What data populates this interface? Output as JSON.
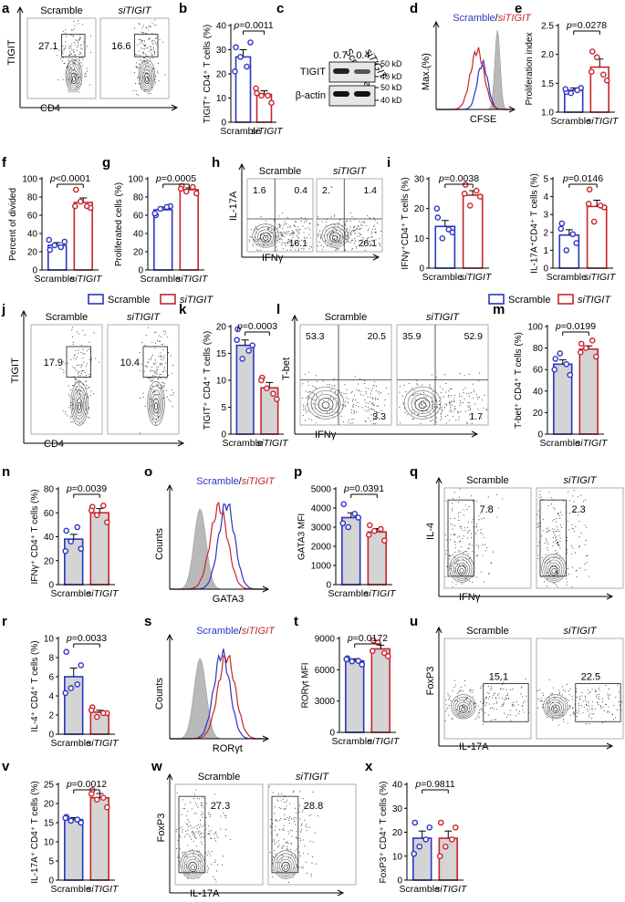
{
  "colors": {
    "scramble": "#2b35c4",
    "sitigit": "#c8242b",
    "bar_fill": "#d4d4d4",
    "gray_hist": "#b9b9b9"
  },
  "labels": {
    "scramble": "Scramble",
    "sitigit": "siTIGIT",
    "slash": "/"
  },
  "panel_letters": [
    "a",
    "b",
    "c",
    "d",
    "e",
    "f",
    "g",
    "h",
    "i",
    "j",
    "k",
    "l",
    "m",
    "n",
    "o",
    "p",
    "q",
    "r",
    "s",
    "t",
    "u",
    "v",
    "w",
    "x"
  ],
  "legend": {
    "scramble": "Scramble",
    "sitigit": "siTIGIT"
  },
  "blot": {
    "bands": [
      "TIGIT",
      "β-actin"
    ],
    "values": [
      "0.7",
      "0.4"
    ],
    "markers": [
      "50 kD",
      "40 kD",
      "50 kD",
      "40 kD"
    ]
  },
  "flow_panels": [
    {
      "panel": "a",
      "ylabel": "TIGIT",
      "xlabel": "CD4",
      "values": [
        "27.1",
        "16.6"
      ]
    },
    {
      "panel": "h",
      "ylabel": "IL-17A",
      "xlabel": "IFNγ",
      "values": [
        "1.6",
        "0.4",
        "16.1",
        "2.`",
        "1.4",
        "26.1"
      ]
    },
    {
      "panel": "j",
      "ylabel": "TIGIT",
      "xlabel": "CD4",
      "values": [
        "17.9",
        "10.4"
      ]
    },
    {
      "panel": "l",
      "ylabel": "T-bet",
      "xlabel": "IFNγ",
      "values": [
        "53.3",
        "20.5",
        "3.3",
        "35.9",
        "52.9",
        "1.7"
      ]
    },
    {
      "panel": "q",
      "ylabel": "IL-4",
      "xlabel": "IFNγ",
      "values": [
        "7.8",
        "2.3"
      ]
    },
    {
      "panel": "u",
      "ylabel": "FoxP3",
      "xlabel": "IL-17A",
      "values": [
        "15.1",
        "22.5"
      ]
    },
    {
      "panel": "w",
      "ylabel": "FoxP3",
      "xlabel": "IL-17A",
      "values": [
        "27.3",
        "28.8"
      ]
    }
  ],
  "histograms": [
    {
      "panel": "d",
      "ylabel": "Max.(%)",
      "xlabel": "CFSE"
    },
    {
      "panel": "o",
      "ylabel": "Counts",
      "xlabel": "GATA3"
    },
    {
      "panel": "s",
      "ylabel": "Counts",
      "xlabel": "RORγt"
    }
  ],
  "chart_data": [
    {
      "panel": "b",
      "type": "bar",
      "ylabel": "TIGIT⁺ CD4⁺ T cells (%)",
      "ylim": [
        0,
        40
      ],
      "yticks": [
        "0",
        "10",
        "20",
        "30",
        "40"
      ],
      "p": "p=0.0011",
      "categories": [
        "Scramble",
        "siTIGIT"
      ],
      "fill": false,
      "means": [
        27,
        11.5
      ],
      "sems": [
        3,
        1.5
      ],
      "points": [
        [
          31,
          33,
          27,
          21,
          23
        ],
        [
          12,
          8,
          11,
          14,
          11
        ]
      ]
    },
    {
      "panel": "e",
      "type": "bar",
      "ylabel": "Proliferation index",
      "ylim": [
        1.0,
        2.5
      ],
      "yticks": [
        "1.0",
        "1.5",
        "2.0",
        "2.5"
      ],
      "p": "p=0.0278",
      "categories": [
        "Scramble",
        "siTIGIT"
      ],
      "fill": false,
      "means": [
        1.38,
        1.78
      ],
      "sems": [
        0.04,
        0.14
      ],
      "points": [
        [
          1.35,
          1.42,
          1.33,
          1.4,
          1.38
        ],
        [
          2.05,
          1.55,
          1.95,
          1.7,
          1.65
        ]
      ]
    },
    {
      "panel": "f",
      "type": "bar",
      "ylabel": "Percent of divided",
      "ylim": [
        0,
        100
      ],
      "yticks": [
        "0",
        "20",
        "40",
        "60",
        "80",
        "100"
      ],
      "p": "p<0.0001",
      "categories": [
        "Scramble",
        "siTIGIT"
      ],
      "fill": false,
      "means": [
        27,
        74
      ],
      "sems": [
        3,
        5
      ],
      "points": [
        [
          22,
          31,
          27,
          33,
          25
        ],
        [
          88,
          68,
          75,
          70,
          70
        ]
      ]
    },
    {
      "panel": "g",
      "type": "bar",
      "ylabel": "Proliferated cells (%)",
      "ylim": [
        0,
        100
      ],
      "yticks": [
        "0",
        "20",
        "40",
        "60",
        "80",
        "100"
      ],
      "p": "p=0.0005",
      "categories": [
        "Scramble",
        "siTIGIT"
      ],
      "fill": false,
      "means": [
        66,
        88
      ],
      "sems": [
        3,
        2
      ],
      "points": [
        [
          60,
          70,
          67,
          62,
          69
        ],
        [
          92,
          84,
          86,
          89,
          91
        ]
      ]
    },
    {
      "panel": "i1",
      "type": "bar",
      "ylabel": "IFNγ⁺CD4⁺ T cells (%)",
      "ylim": [
        0,
        30
      ],
      "yticks": [
        "0",
        "10",
        "20",
        "30"
      ],
      "p": "p=0.0038",
      "categories": [
        "Scramble",
        "siTIGIT"
      ],
      "fill": false,
      "means": [
        14,
        24.5
      ],
      "sems": [
        2,
        1.5
      ],
      "points": [
        [
          17,
          12,
          10,
          20,
          13
        ],
        [
          28,
          24,
          21,
          25,
          26
        ]
      ]
    },
    {
      "panel": "i2",
      "type": "bar",
      "ylabel": "IL-17A⁺CD4⁺ T cells (%)",
      "ylim": [
        0,
        5
      ],
      "yticks": [
        "0",
        "1",
        "2",
        "3",
        "4",
        "5"
      ],
      "p": "p=0.0146",
      "categories": [
        "Scramble",
        "siTIGIT"
      ],
      "fill": false,
      "means": [
        1.85,
        3.45
      ],
      "sems": [
        0.3,
        0.35
      ],
      "points": [
        [
          2.5,
          1.4,
          1.0,
          2.2,
          1.9
        ],
        [
          4.4,
          3.4,
          2.6,
          3.6,
          3.5
        ]
      ]
    },
    {
      "panel": "k",
      "type": "bar",
      "ylabel": "TIGIT⁺ CD4⁺ T cells (%)",
      "ylim": [
        0,
        20
      ],
      "yticks": [
        "0",
        "5",
        "10",
        "15",
        "20"
      ],
      "p": "p=0.0003",
      "categories": [
        "Scramble",
        "siTIGIT"
      ],
      "fill": true,
      "means": [
        16.5,
        8.6
      ],
      "sems": [
        1,
        1
      ],
      "points": [
        [
          19.5,
          16.5,
          14,
          17.5,
          15.5
        ],
        [
          10.5,
          6.5,
          8.5,
          10,
          7.5
        ]
      ]
    },
    {
      "panel": "m",
      "type": "bar",
      "ylabel": "T-bet⁺ CD4⁺ T cells (%)",
      "ylim": [
        0,
        100
      ],
      "yticks": [
        "0",
        "20",
        "40",
        "60",
        "80",
        "100"
      ],
      "p": "p=0.0199",
      "categories": [
        "Scramble",
        "siTIGIT"
      ],
      "fill": true,
      "means": [
        65,
        79
      ],
      "sems": [
        4,
        3
      ],
      "points": [
        [
          70,
          55,
          75,
          60,
          65
        ],
        [
          84,
          72,
          80,
          76,
          87
        ]
      ]
    },
    {
      "panel": "n",
      "type": "bar",
      "ylabel": "IFNγ⁺ CD4⁺ T cells (%)",
      "ylim": [
        0,
        80
      ],
      "yticks": [
        "0",
        "20",
        "40",
        "60",
        "80"
      ],
      "p": "p=0.0039",
      "categories": [
        "Scramble",
        "siTIGIT"
      ],
      "fill": true,
      "means": [
        38,
        60
      ],
      "sems": [
        4,
        3.5
      ],
      "points": [
        [
          45,
          30,
          36,
          28,
          48
        ],
        [
          65,
          52,
          58,
          62,
          66
        ]
      ]
    },
    {
      "panel": "p",
      "type": "bar",
      "ylabel": "GATA3 MFI",
      "ylim": [
        0,
        5000
      ],
      "yticks": [
        "0",
        "1000",
        "2000",
        "3000",
        "4000",
        "5000"
      ],
      "p": "p=0.0391",
      "categories": [
        "Scramble",
        "siTIGIT"
      ],
      "fill": true,
      "means": [
        3500,
        2750
      ],
      "sems": [
        250,
        180
      ],
      "points": [
        [
          4200,
          3500,
          3000,
          3200,
          3700
        ],
        [
          3100,
          2300,
          2800,
          2600,
          2900
        ]
      ]
    },
    {
      "panel": "r",
      "type": "bar",
      "ylabel": "IL-4⁺ CD4⁺ T cells (%)",
      "ylim": [
        0,
        10
      ],
      "yticks": [
        "0",
        "2",
        "4",
        "6",
        "8",
        "10"
      ],
      "p": "p=0.0033",
      "categories": [
        "Scramble",
        "siTIGIT"
      ],
      "fill": true,
      "means": [
        6,
        2.3
      ],
      "sems": [
        0.9,
        0.2
      ],
      "points": [
        [
          8.6,
          7.2,
          4.8,
          4.3,
          5.2
        ],
        [
          2.8,
          2.2,
          1.8,
          2.5,
          2.2
        ]
      ]
    },
    {
      "panel": "t",
      "type": "bar",
      "ylabel": "RORγt MFI",
      "ylim": [
        0,
        9000
      ],
      "yticks": [
        "0",
        "3000",
        "6000",
        "9000"
      ],
      "p": "p=0.0172",
      "categories": [
        "Scramble",
        "siTIGIT"
      ],
      "fill": true,
      "means": [
        6850,
        8000
      ],
      "sems": [
        200,
        350
      ],
      "points": [
        [
          7100,
          6500,
          6800,
          7000,
          6850
        ],
        [
          8800,
          7300,
          8600,
          7800,
          7600
        ]
      ]
    },
    {
      "panel": "v",
      "type": "bar",
      "ylabel": "IL-17A⁺ CD4⁺ T cells (%)",
      "ylim": [
        0,
        25
      ],
      "yticks": [
        "0",
        "5",
        "10",
        "15",
        "20",
        "25"
      ],
      "p": "p=0.0012",
      "categories": [
        "Scramble",
        "siTIGIT"
      ],
      "fill": true,
      "means": [
        15.8,
        21.5
      ],
      "sems": [
        0.5,
        1.1
      ],
      "points": [
        [
          16.5,
          15,
          15.5,
          16.2,
          15.8
        ],
        [
          23.5,
          19,
          21,
          22.5,
          21.5
        ]
      ]
    },
    {
      "panel": "x",
      "type": "bar",
      "ylabel": "FoxP3⁺ CD4⁺ T cells (%)",
      "ylim": [
        0,
        40
      ],
      "yticks": [
        "0",
        "10",
        "20",
        "30",
        "40"
      ],
      "p": "p=0.9811",
      "categories": [
        "Scramble",
        "siTIGIT"
      ],
      "fill": true,
      "means": [
        17.5,
        17.5
      ],
      "sems": [
        3,
        3
      ],
      "points": [
        [
          24,
          22,
          14,
          11,
          17
        ],
        [
          24,
          22,
          14,
          10,
          17
        ]
      ]
    }
  ]
}
